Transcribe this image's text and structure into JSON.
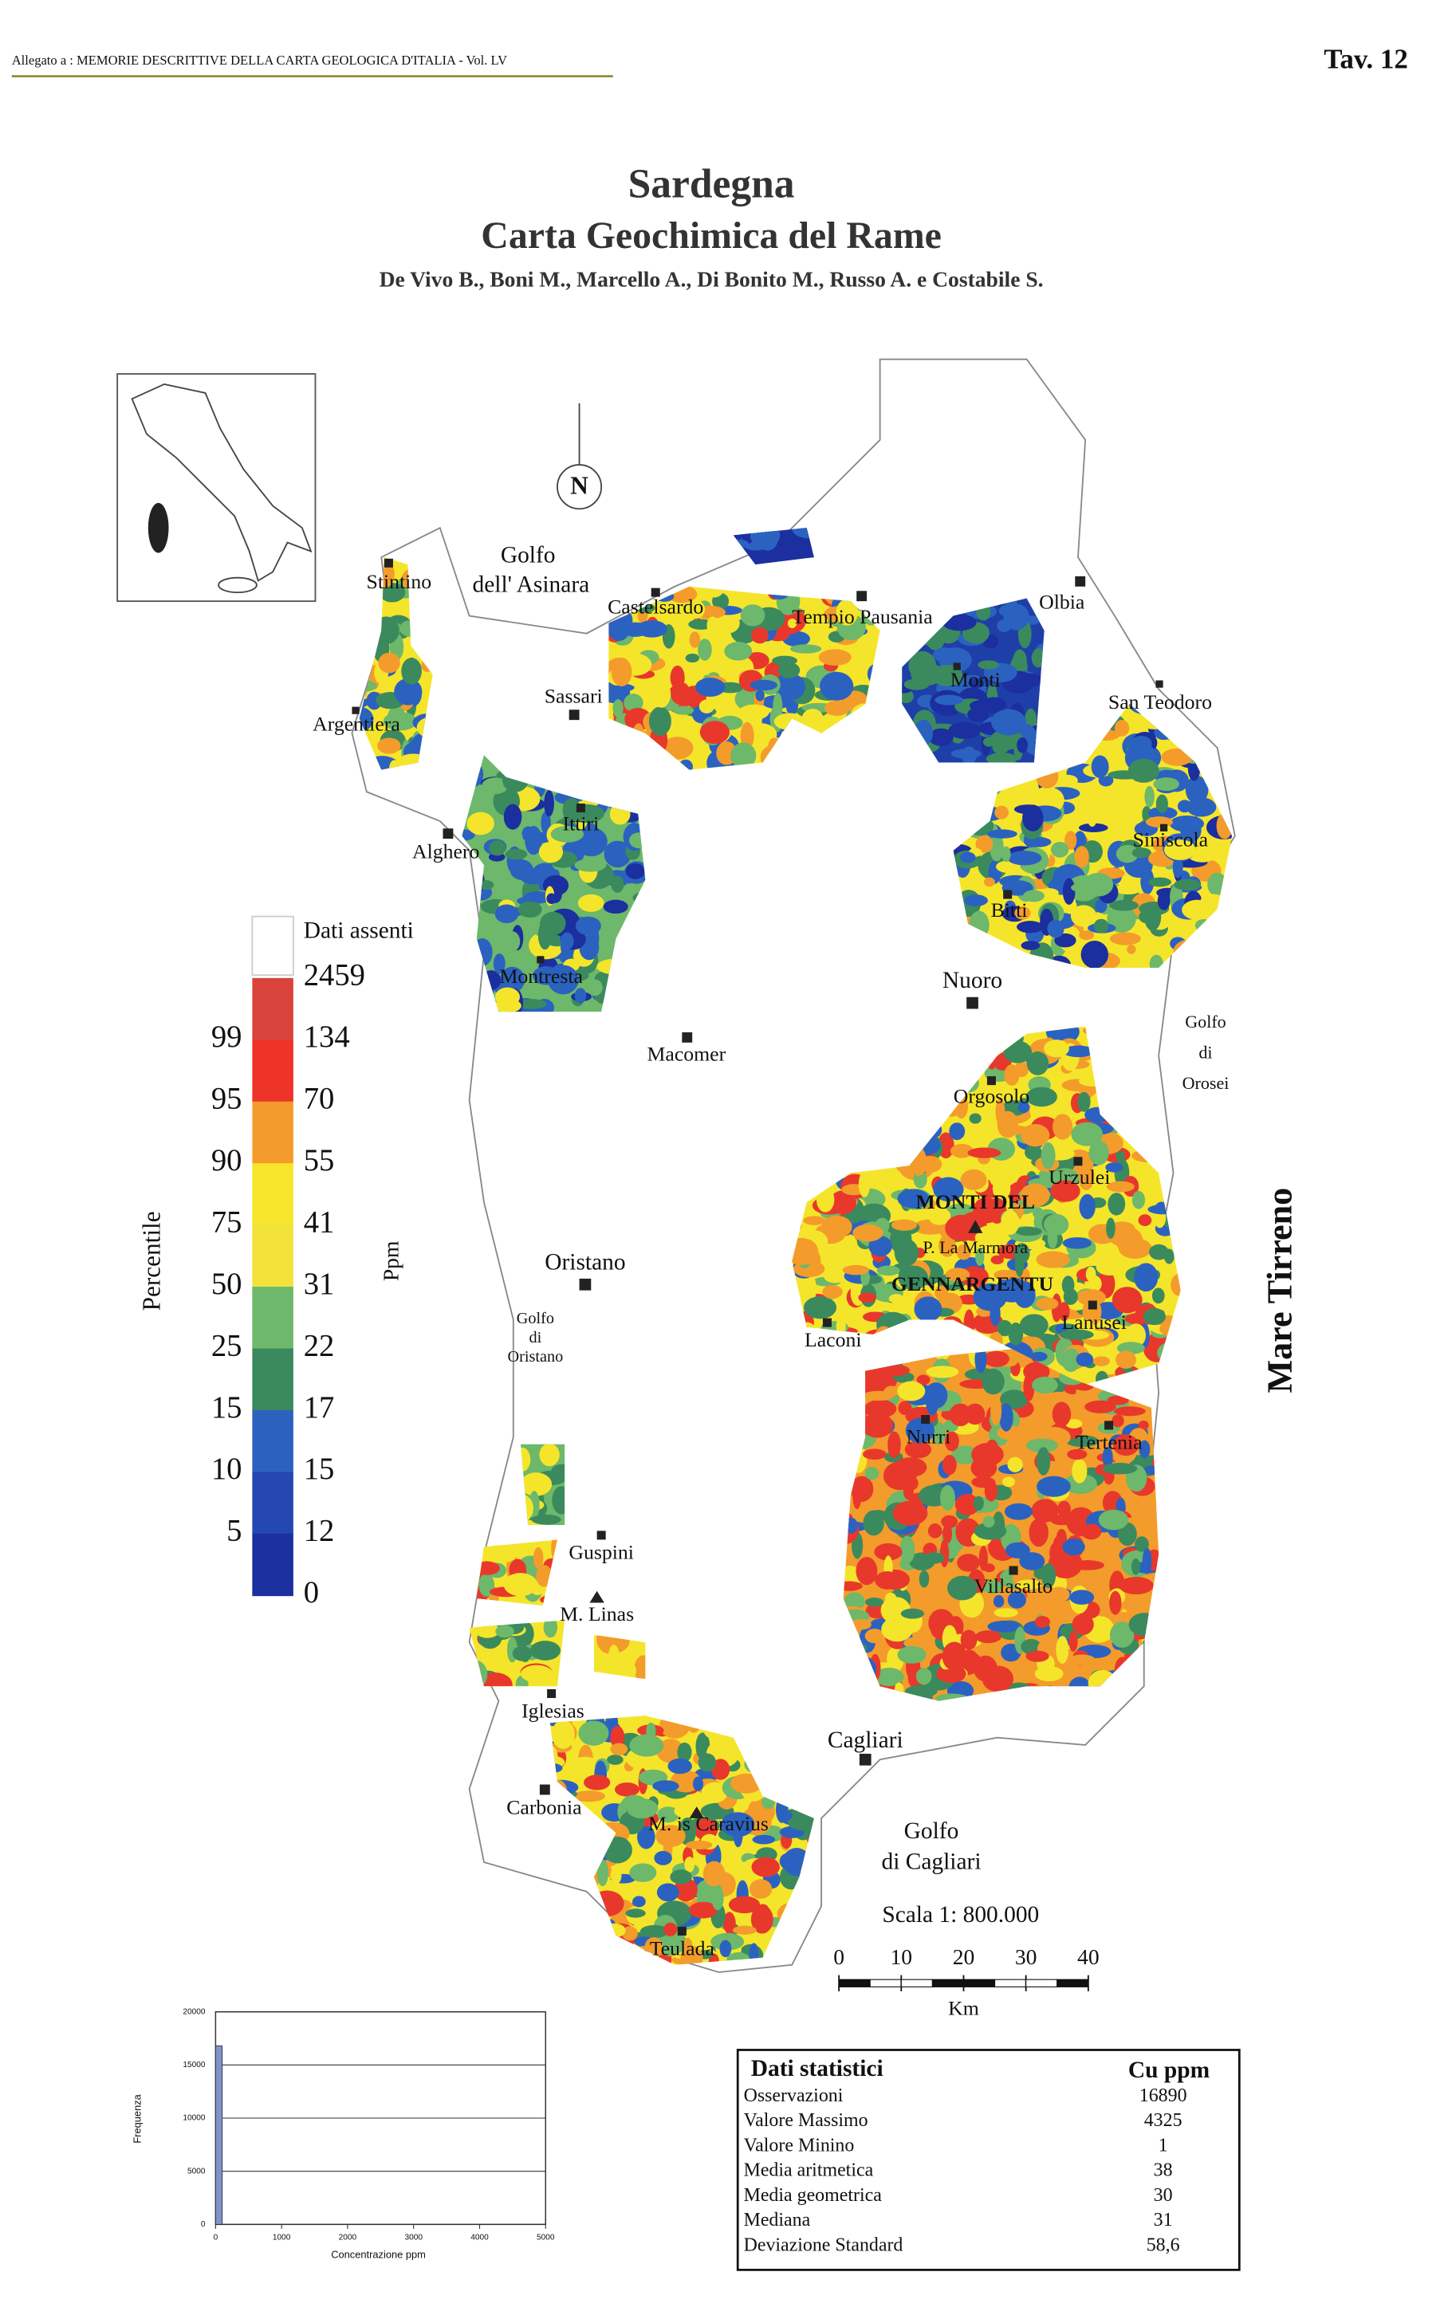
{
  "header": {
    "left": "Allegato a : MEMORIE DESCRITTIVE DELLA CARTA GEOLOGICA D'ITALIA - Vol. LV",
    "right": "Tav. 12"
  },
  "title": {
    "region": "Sardegna",
    "main": "Carta Geochimica del Rame",
    "authors": "De Vivo B., Boni M., Marcello A., Di Bonito M., Russo A. e Costabile S."
  },
  "map": {
    "north": "N",
    "sea": "Mare Tirreno",
    "places": [
      "Stintino",
      "Castelsardo",
      "Tempio Pausania",
      "Olbia",
      "Sassari",
      "Monti",
      "San Teodoro",
      "Argentiera",
      "Ittiri",
      "Alghero",
      "Siniscola",
      "Bitti",
      "Montresta",
      "Nuoro",
      "Macomer",
      "Orgosolo",
      "Urzulei",
      "MONTI DEL",
      "P. La Marmora",
      "GENNARGENTU",
      "Oristano",
      "Lanusei",
      "Laconi",
      "Nurri",
      "Tertenia",
      "Guspini",
      "Villasalto",
      "M. Linas",
      "Iglesias",
      "Cagliari",
      "Carbonia",
      "M. is Caravius",
      "Teulada"
    ],
    "gulfs": [
      [
        "Golfo",
        "dell' Asinara"
      ],
      [
        "Golfo",
        "di",
        "Orosei"
      ],
      [
        "Golfo",
        "di",
        "Oristano"
      ],
      [
        "Golfo",
        "di Cagliari"
      ]
    ]
  },
  "legend": {
    "no_data": "Dati assenti",
    "ppm_title": "Ppm",
    "percentile_title": "Percentile",
    "ppm": [
      2459,
      134,
      70,
      55,
      41,
      31,
      22,
      17,
      15,
      12,
      0
    ],
    "percentiles": [
      99,
      95,
      90,
      75,
      50,
      25,
      15,
      10,
      5
    ],
    "colors": [
      "#d9443c",
      "#ee3328",
      "#f39c2b",
      "#f6e52a",
      "#f3e23a",
      "#6db86a",
      "#3b8a5e",
      "#2b62c0",
      "#2447b0",
      "#1b2f9e"
    ]
  },
  "scale": {
    "label": "Scala 1: 800.000",
    "ticks": [
      0,
      10,
      20,
      30,
      40
    ],
    "unit": "Km"
  },
  "chart_data": {
    "type": "histogram",
    "ylabel": "Frequenza",
    "xlabel": "Concentrazione ppm",
    "bins": [
      0,
      100
    ],
    "counts": [
      16800
    ],
    "color": "#8094cc",
    "xlim": [
      0,
      5000
    ],
    "ylim": [
      0,
      20000
    ],
    "xticks": [
      0,
      1000,
      2000,
      3000,
      4000,
      5000
    ],
    "yticks": [
      0,
      5000,
      10000,
      15000,
      20000
    ],
    "grid": true
  },
  "stats": {
    "title": "Dati statistici",
    "unit": "Cu ppm",
    "rows": [
      [
        "Osservazioni",
        16890
      ],
      [
        "Valore Massimo",
        4325
      ],
      [
        "Valore Minino",
        1
      ],
      [
        "Media aritmetica",
        38
      ],
      [
        "Media geometrica",
        30
      ],
      [
        "Mediana",
        31
      ],
      [
        "Deviazione Standard",
        {
          "value": 58.6,
          "label": "58,6"
        }
      ]
    ]
  }
}
